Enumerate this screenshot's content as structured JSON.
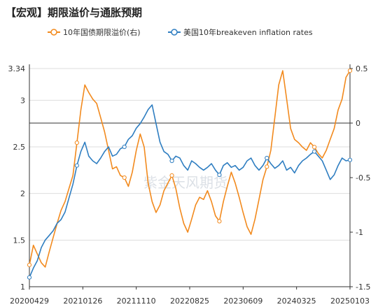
{
  "chart_data": {
    "type": "line",
    "title": "【宏观】期限溢价与通胀预期",
    "watermark": "紫金天风期货",
    "legend_position": "top",
    "grid": true,
    "x_ticks": [
      "20200429",
      "20210126",
      "20211110",
      "20220825",
      "20230609",
      "20240325",
      "20250103"
    ],
    "left_axis": {
      "ylim": [
        1,
        3.34
      ],
      "ticks": [
        "3.34",
        "3",
        "2.5",
        "2",
        "1.5",
        "1"
      ]
    },
    "right_axis": {
      "ylim": [
        -1.5,
        0.5
      ],
      "ticks": [
        "0.5",
        "0",
        "-0.5",
        "-1",
        "-1.5"
      ]
    },
    "series": [
      {
        "name": "10年国债期限溢价(右)",
        "axis": "right",
        "color": "#f28a1e",
        "values": [
          -1.3,
          -1.12,
          -1.2,
          -1.28,
          -1.32,
          -1.18,
          -1.05,
          -0.92,
          -0.8,
          -0.72,
          -0.6,
          -0.48,
          -0.18,
          0.12,
          0.35,
          0.28,
          0.22,
          0.18,
          0.05,
          -0.08,
          -0.25,
          -0.42,
          -0.4,
          -0.48,
          -0.5,
          -0.58,
          -0.45,
          -0.25,
          -0.1,
          -0.22,
          -0.55,
          -0.72,
          -0.82,
          -0.75,
          -0.62,
          -0.55,
          -0.48,
          -0.6,
          -0.78,
          -0.92,
          -1.0,
          -0.88,
          -0.75,
          -0.68,
          -0.7,
          -0.62,
          -0.72,
          -0.85,
          -0.9,
          -0.72,
          -0.58,
          -0.45,
          -0.55,
          -0.68,
          -0.82,
          -0.95,
          -1.02,
          -0.88,
          -0.7,
          -0.52,
          -0.4,
          -0.25,
          0.05,
          0.35,
          0.48,
          0.22,
          -0.05,
          -0.15,
          -0.18,
          -0.22,
          -0.25,
          -0.18,
          -0.22,
          -0.28,
          -0.32,
          -0.25,
          -0.15,
          -0.05,
          0.12,
          0.22,
          0.42,
          0.48
        ]
      },
      {
        "name": "美国10年breakeven inflation rates",
        "axis": "left",
        "color": "#2f7ec1",
        "values": [
          1.1,
          1.2,
          1.28,
          1.42,
          1.5,
          1.55,
          1.6,
          1.68,
          1.72,
          1.8,
          1.95,
          2.1,
          2.3,
          2.45,
          2.55,
          2.4,
          2.35,
          2.32,
          2.38,
          2.45,
          2.5,
          2.4,
          2.42,
          2.48,
          2.5,
          2.58,
          2.62,
          2.7,
          2.75,
          2.82,
          2.9,
          2.95,
          2.75,
          2.55,
          2.45,
          2.42,
          2.35,
          2.4,
          2.38,
          2.3,
          2.25,
          2.35,
          2.32,
          2.28,
          2.25,
          2.28,
          2.32,
          2.25,
          2.2,
          2.3,
          2.33,
          2.28,
          2.3,
          2.25,
          2.28,
          2.35,
          2.38,
          2.3,
          2.25,
          2.3,
          2.38,
          2.32,
          2.27,
          2.3,
          2.35,
          2.25,
          2.28,
          2.22,
          2.3,
          2.35,
          2.38,
          2.42,
          2.45,
          2.4,
          2.35,
          2.25,
          2.15,
          2.2,
          2.3,
          2.38,
          2.35,
          2.36
        ]
      }
    ]
  }
}
